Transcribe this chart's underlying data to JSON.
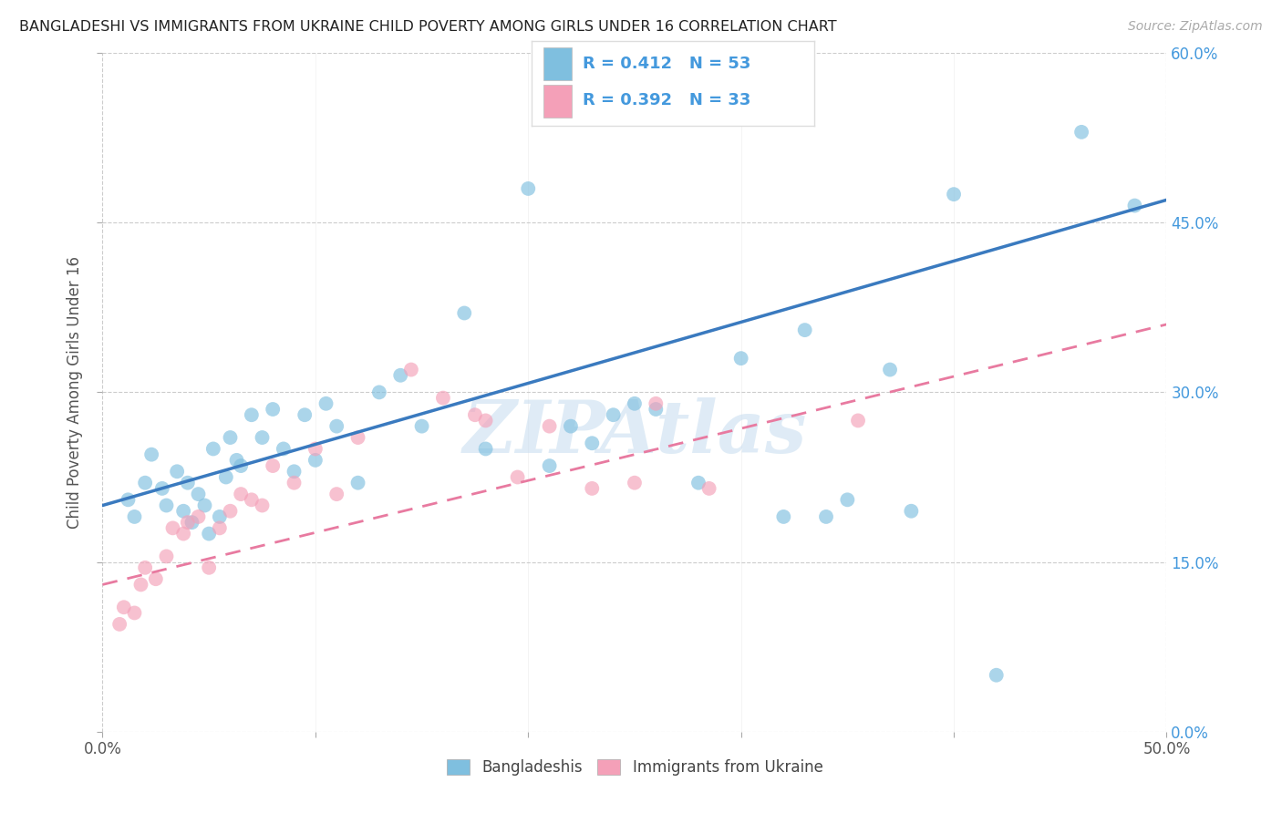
{
  "title": "BANGLADESHI VS IMMIGRANTS FROM UKRAINE CHILD POVERTY AMONG GIRLS UNDER 16 CORRELATION CHART",
  "source": "Source: ZipAtlas.com",
  "ylabel": "Child Poverty Among Girls Under 16",
  "xlim": [
    0,
    50
  ],
  "ylim": [
    0,
    60
  ],
  "yticks": [
    0,
    15,
    30,
    45,
    60
  ],
  "blue_R": 0.412,
  "blue_N": 53,
  "pink_R": 0.392,
  "pink_N": 33,
  "blue_color": "#7fbfdf",
  "pink_color": "#f4a0b8",
  "blue_line_color": "#3a7abf",
  "pink_line_color": "#e87aa0",
  "right_tick_color": "#4499dd",
  "watermark": "ZIPAtlas",
  "legend_label_blue": "Bangladeshis",
  "legend_label_pink": "Immigrants from Ukraine",
  "blue_line_start_y": 20.0,
  "blue_line_end_y": 47.0,
  "pink_line_start_y": 13.0,
  "pink_line_end_y": 36.0,
  "blue_x": [
    1.2,
    1.5,
    2.0,
    2.3,
    2.8,
    3.0,
    3.5,
    3.8,
    4.0,
    4.2,
    4.5,
    4.8,
    5.0,
    5.2,
    5.5,
    5.8,
    6.0,
    6.3,
    6.5,
    7.0,
    7.5,
    8.0,
    8.5,
    9.0,
    9.5,
    10.0,
    10.5,
    11.0,
    12.0,
    13.0,
    14.0,
    15.0,
    17.0,
    18.0,
    20.0,
    21.0,
    22.0,
    23.0,
    24.0,
    25.0,
    26.0,
    28.0,
    30.0,
    32.0,
    33.0,
    34.0,
    35.0,
    37.0,
    38.0,
    40.0,
    42.0,
    46.0,
    48.5
  ],
  "blue_y": [
    20.5,
    19.0,
    22.0,
    24.5,
    21.5,
    20.0,
    23.0,
    19.5,
    22.0,
    18.5,
    21.0,
    20.0,
    17.5,
    25.0,
    19.0,
    22.5,
    26.0,
    24.0,
    23.5,
    28.0,
    26.0,
    28.5,
    25.0,
    23.0,
    28.0,
    24.0,
    29.0,
    27.0,
    22.0,
    30.0,
    31.5,
    27.0,
    37.0,
    25.0,
    48.0,
    23.5,
    27.0,
    25.5,
    28.0,
    29.0,
    28.5,
    22.0,
    33.0,
    19.0,
    35.5,
    19.0,
    20.5,
    32.0,
    19.5,
    47.5,
    5.0,
    53.0,
    46.5
  ],
  "pink_x": [
    0.8,
    1.0,
    1.5,
    1.8,
    2.0,
    2.5,
    3.0,
    3.3,
    3.8,
    4.0,
    4.5,
    5.0,
    5.5,
    6.0,
    6.5,
    7.0,
    7.5,
    8.0,
    9.0,
    10.0,
    11.0,
    12.0,
    14.5,
    16.0,
    17.5,
    18.0,
    19.5,
    21.0,
    23.0,
    25.0,
    26.0,
    28.5,
    35.5
  ],
  "pink_y": [
    9.5,
    11.0,
    10.5,
    13.0,
    14.5,
    13.5,
    15.5,
    18.0,
    17.5,
    18.5,
    19.0,
    14.5,
    18.0,
    19.5,
    21.0,
    20.5,
    20.0,
    23.5,
    22.0,
    25.0,
    21.0,
    26.0,
    32.0,
    29.5,
    28.0,
    27.5,
    22.5,
    27.0,
    21.5,
    22.0,
    29.0,
    21.5,
    27.5
  ]
}
